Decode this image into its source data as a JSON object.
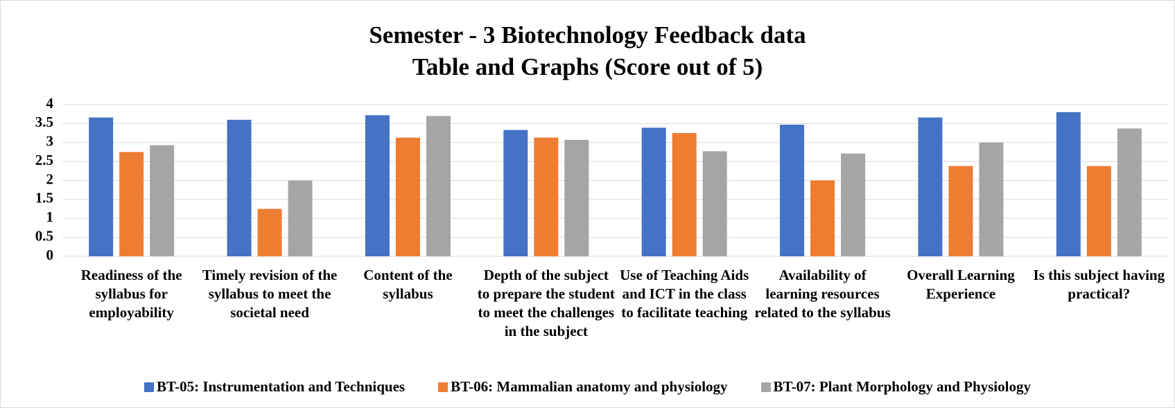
{
  "chart_data": {
    "type": "bar",
    "title": "Semester - 3 Biotechnology Feedback data",
    "subtitle": "Table and Graphs (Score out of 5)",
    "categories": [
      "Readiness of the syllabus for employability",
      "Timely revision of the syllabus to meet the societal need",
      "Content of the syllabus",
      "Depth of the subject to prepare the student to meet the challenges in the subject",
      "Use of Teaching Aids and ICT in the class to facilitate teaching",
      "Availability of learning resources related to the syllabus",
      "Overall Learning Experience",
      "Is this subject having practical?"
    ],
    "series": [
      {
        "name": "BT-05: Instrumentation and Techniques",
        "color": "#4472c4",
        "values": [
          3.66,
          3.6,
          3.72,
          3.33,
          3.39,
          3.47,
          3.66,
          3.8
        ]
      },
      {
        "name": "BT-06: Mammalian anatomy and physiology",
        "color": "#ed7d31",
        "values": [
          2.75,
          1.25,
          3.13,
          3.13,
          3.25,
          2.0,
          2.38,
          2.38
        ]
      },
      {
        "name": "BT-07: Plant Morphology and Physiology",
        "color": "#a5a5a5",
        "values": [
          2.93,
          2.0,
          3.7,
          3.07,
          2.77,
          2.71,
          3.0,
          3.37
        ]
      }
    ],
    "ylim": [
      0,
      4
    ],
    "yticks": [
      0,
      0.5,
      1,
      1.5,
      2,
      2.5,
      3,
      3.5,
      4
    ],
    "grid": true,
    "legend": "bottom"
  }
}
